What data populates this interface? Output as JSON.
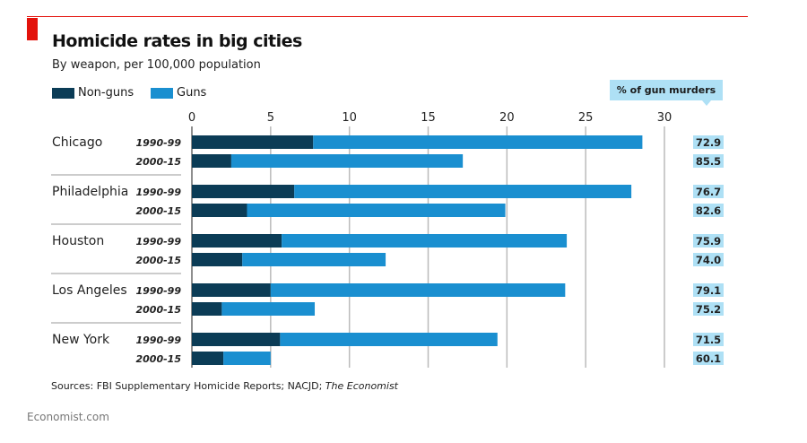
{
  "header": {
    "title": "Homicide rates in big cities",
    "subtitle": "By weapon, per 100,000 population"
  },
  "legend": [
    {
      "label": "Non-guns",
      "color": "#0b3c56"
    },
    {
      "label": "Guns",
      "color": "#1a8fd0"
    }
  ],
  "pct_header": "% of gun murders",
  "footer": {
    "sources_prefix": "Sources: FBI Supplementary Homicide Reports; NACJD; ",
    "sources_italic": "The Economist",
    "site": "Economist.com"
  },
  "chart_data": {
    "type": "bar",
    "orientation": "horizontal",
    "stacked": true,
    "title": "Homicide rates in big cities",
    "subtitle": "By weapon, per 100,000 population",
    "xlim": [
      0,
      30
    ],
    "xticks": [
      0,
      5,
      10,
      15,
      20,
      25,
      30
    ],
    "grid": true,
    "legend_placement": "top-left",
    "colors": {
      "non_guns": "#0b3c56",
      "guns": "#1a8fd0",
      "pct_box": "#aee0f5"
    },
    "groups": [
      {
        "city": "Chicago",
        "rows": [
          {
            "period": "1990-99",
            "non_guns": 7.7,
            "guns": 20.9,
            "pct": "72.9"
          },
          {
            "period": "2000-15",
            "non_guns": 2.5,
            "guns": 14.7,
            "pct": "85.5"
          }
        ]
      },
      {
        "city": "Philadelphia",
        "rows": [
          {
            "period": "1990-99",
            "non_guns": 6.5,
            "guns": 21.4,
            "pct": "76.7"
          },
          {
            "period": "2000-15",
            "non_guns": 3.5,
            "guns": 16.4,
            "pct": "82.6"
          }
        ]
      },
      {
        "city": "Houston",
        "rows": [
          {
            "period": "1990-99",
            "non_guns": 5.7,
            "guns": 18.1,
            "pct": "75.9"
          },
          {
            "period": "2000-15",
            "non_guns": 3.2,
            "guns": 9.1,
            "pct": "74.0"
          }
        ]
      },
      {
        "city": "Los Angeles",
        "rows": [
          {
            "period": "1990-99",
            "non_guns": 5.0,
            "guns": 18.7,
            "pct": "79.1"
          },
          {
            "period": "2000-15",
            "non_guns": 1.9,
            "guns": 5.9,
            "pct": "75.2"
          }
        ]
      },
      {
        "city": "New York",
        "rows": [
          {
            "period": "1990-99",
            "non_guns": 5.6,
            "guns": 13.8,
            "pct": "71.5"
          },
          {
            "period": "2000-15",
            "non_guns": 2.0,
            "guns": 3.0,
            "pct": "60.1"
          }
        ]
      }
    ]
  }
}
